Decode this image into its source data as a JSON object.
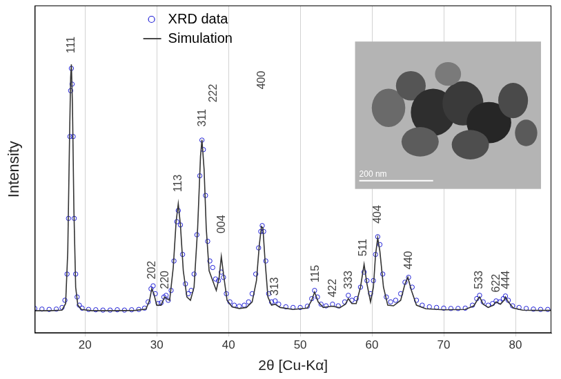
{
  "chart_data": {
    "type": "scatter",
    "x_label": "2θ [Cu-Kα]",
    "y_label": "Intensity",
    "xlim": [
      13,
      85
    ],
    "xticks": [
      20,
      30,
      40,
      50,
      60,
      70,
      80
    ],
    "ylim": [
      0,
      100
    ],
    "yticks": [],
    "tick_labels": "x",
    "grid": true,
    "legend": "upper left",
    "series": [
      {
        "name": "XRD data",
        "type": "scatter",
        "color": "#1f1fd6",
        "marker": "circle",
        "x": [
          13,
          14,
          15,
          16,
          16.8,
          17.2,
          17.5,
          17.7,
          17.9,
          18.0,
          18.1,
          18.2,
          18.35,
          18.5,
          18.7,
          18.9,
          19.2,
          19.6,
          20.5,
          21.5,
          22.5,
          23.5,
          24.5,
          25.5,
          26.5,
          27.5,
          28.3,
          28.8,
          29.2,
          29.5,
          29.8,
          30.2,
          30.6,
          31.0,
          31.3,
          31.6,
          32.0,
          32.4,
          32.8,
          33.0,
          33.3,
          33.6,
          34.0,
          34.4,
          34.8,
          35.2,
          35.6,
          36.0,
          36.3,
          36.5,
          36.8,
          37.1,
          37.4,
          37.8,
          38.2,
          38.6,
          39.0,
          39.3,
          39.7,
          40.2,
          40.8,
          41.5,
          42.2,
          42.8,
          43.3,
          43.8,
          44.2,
          44.5,
          44.7,
          44.9,
          45.2,
          45.6,
          46.0,
          46.5,
          47.0,
          48,
          49,
          50,
          51,
          51.6,
          52.0,
          52.4,
          52.9,
          53.6,
          54.5,
          55.3,
          56.2,
          56.7,
          57.2,
          57.8,
          58.4,
          58.9,
          59.3,
          59.8,
          60.2,
          60.5,
          60.8,
          61.1,
          61.5,
          62.0,
          62.6,
          63.3,
          64.0,
          64.6,
          65.1,
          65.6,
          66.2,
          67,
          68,
          69,
          70,
          71,
          72,
          73,
          74,
          74.6,
          75.0,
          75.5,
          76.2,
          76.8,
          77.3,
          77.8,
          78.3,
          78.6,
          79.0,
          79.6,
          80.5,
          81.5,
          82.5,
          83.5,
          84.5
        ],
        "values": [
          7.5,
          7.3,
          7.2,
          7.3,
          7.8,
          10,
          18,
          35,
          60,
          74,
          80.8,
          76,
          60,
          35,
          18,
          11,
          8.5,
          7.6,
          7.2,
          7.1,
          7,
          7,
          7.1,
          7,
          7.1,
          7.2,
          7.6,
          9.5,
          13.5,
          14.4,
          12,
          9,
          9.2,
          11,
          11.5,
          10,
          13,
          22,
          34,
          37.4,
          33,
          24,
          15,
          12,
          13,
          18,
          30,
          48,
          58.9,
          56,
          42,
          28,
          22,
          20,
          16.5,
          16,
          18.6,
          17,
          12,
          9.5,
          8.5,
          8.2,
          8.5,
          9.5,
          12,
          18,
          26,
          31,
          32.8,
          31,
          22,
          12,
          9.5,
          9.8,
          8.8,
          8,
          7.8,
          7.8,
          8.2,
          10.5,
          13,
          11,
          8.8,
          8.3,
          8.8,
          8.3,
          9.5,
          11.5,
          10,
          10.5,
          14,
          18.6,
          16,
          12,
          16,
          24,
          29.4,
          27,
          18,
          11,
          9.5,
          10,
          12,
          15.5,
          17,
          14,
          10,
          8.5,
          8,
          7.8,
          7.6,
          7.5,
          7.5,
          7.6,
          8.5,
          10.5,
          11.5,
          9.5,
          8.5,
          9,
          9.8,
          9.5,
          10.5,
          11.3,
          10,
          8.3,
          7.8,
          7.5,
          7.3,
          7.2,
          7.2
        ]
      },
      {
        "name": "Simulation",
        "type": "line",
        "color": "#333333",
        "line_style": "solid",
        "x": [
          13,
          15,
          16.8,
          17.3,
          17.6,
          17.85,
          18.0,
          18.1,
          18.25,
          18.45,
          18.7,
          19.0,
          19.5,
          21,
          24,
          27,
          28.5,
          29.0,
          29.3,
          29.6,
          30.0,
          30.6,
          31.1,
          31.4,
          31.8,
          32.3,
          32.7,
          33.0,
          33.3,
          33.7,
          34.2,
          34.7,
          35.2,
          35.7,
          36.1,
          36.3,
          36.6,
          36.9,
          37.3,
          37.8,
          38.3,
          38.7,
          39.0,
          39.3,
          39.8,
          40.5,
          41.5,
          42.5,
          43.3,
          43.9,
          44.3,
          44.6,
          44.8,
          45.1,
          45.5,
          46.0,
          46.5,
          47.2,
          49,
          51,
          51.6,
          52.0,
          52.5,
          53.2,
          54.5,
          55.5,
          56.3,
          56.7,
          57.2,
          57.8,
          58.4,
          58.9,
          59.3,
          59.8,
          60.2,
          60.5,
          60.8,
          61.1,
          61.6,
          62.2,
          63.0,
          64.0,
          64.6,
          65.0,
          65.5,
          66.2,
          67.5,
          70,
          73,
          74.2,
          74.8,
          75.0,
          75.5,
          76.2,
          76.9,
          77.3,
          77.9,
          78.4,
          78.6,
          79.0,
          79.7,
          81,
          83,
          85
        ],
        "values": [
          6.8,
          6.8,
          7,
          9,
          25,
          60,
          78,
          82,
          70,
          38,
          14,
          8.5,
          7.2,
          6.8,
          6.8,
          6.9,
          7.3,
          10,
          13.5,
          12,
          8.5,
          8.5,
          11,
          10.5,
          10,
          20,
          34,
          39.5,
          33,
          19,
          11,
          10,
          14,
          32,
          54,
          59,
          50,
          32,
          19,
          16,
          13,
          17,
          23.4,
          18,
          10,
          8,
          7.5,
          7.8,
          9.5,
          16,
          27,
          32.5,
          32,
          22,
          11,
          8.5,
          8.8,
          7.8,
          7.2,
          7.6,
          10,
          12.5,
          9.5,
          7.8,
          8.2,
          7.7,
          8.8,
          10.5,
          9,
          9,
          14,
          21,
          15,
          9.5,
          14,
          24,
          29,
          25,
          14,
          8.5,
          8.3,
          10,
          15,
          17,
          13,
          8.5,
          7.4,
          7.1,
          7.2,
          8.3,
          10.5,
          11,
          8.8,
          7.8,
          8.5,
          9.5,
          8.8,
          10,
          11,
          9.5,
          7.6,
          7,
          6.9,
          6.9
        ]
      }
    ],
    "annotations": [
      {
        "text": "111",
        "x": 18.1,
        "y": 85
      },
      {
        "text": "202",
        "x": 29.4,
        "y": 16
      },
      {
        "text": "220",
        "x": 31.2,
        "y": 13
      },
      {
        "text": "113",
        "x": 33.0,
        "y": 42.6
      },
      {
        "text": "311",
        "x": 36.4,
        "y": 62.6
      },
      {
        "text": "222",
        "x": 37.9,
        "y": 70
      },
      {
        "text": "004",
        "x": 39.1,
        "y": 30
      },
      {
        "text": "400",
        "x": 44.7,
        "y": 74
      },
      {
        "text": "313",
        "x": 46.5,
        "y": 11
      },
      {
        "text": "115",
        "x": 52.2,
        "y": 15
      },
      {
        "text": "422",
        "x": 54.6,
        "y": 10.5
      },
      {
        "text": "333",
        "x": 56.8,
        "y": 13
      },
      {
        "text": "511",
        "x": 58.8,
        "y": 23
      },
      {
        "text": "404",
        "x": 60.8,
        "y": 33
      },
      {
        "text": "440",
        "x": 65.1,
        "y": 19
      },
      {
        "text": "533",
        "x": 75.0,
        "y": 13
      },
      {
        "text": "622",
        "x": 77.4,
        "y": 12
      },
      {
        "text": "444",
        "x": 78.7,
        "y": 13
      }
    ],
    "inset": {
      "scale_bar": "200 nm"
    }
  }
}
